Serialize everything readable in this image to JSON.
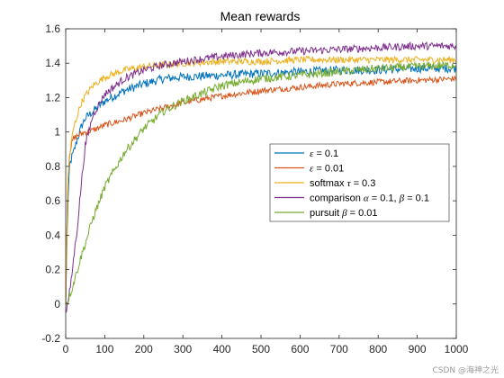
{
  "chart_data": {
    "type": "line",
    "title": "Mean rewards",
    "xlabel": "",
    "ylabel": "",
    "xlim": [
      0,
      1000
    ],
    "ylim": [
      -0.2,
      1.6
    ],
    "xticks": [
      "0",
      "100",
      "200",
      "300",
      "400",
      "500",
      "600",
      "700",
      "800",
      "900",
      "1000"
    ],
    "yticks": [
      "-0.2",
      "0",
      "0.2",
      "0.4",
      "0.6",
      "0.8",
      "1",
      "1.2",
      "1.4",
      "1.6"
    ],
    "grid": false,
    "legend_position": "center-right",
    "x": [
      0,
      5,
      10,
      15,
      20,
      30,
      40,
      50,
      70,
      100,
      150,
      200,
      250,
      300,
      400,
      500,
      600,
      700,
      800,
      900,
      1000
    ],
    "series": [
      {
        "name_parts": [
          {
            "text": "ε",
            "italic": true
          },
          {
            "text": " = 0.1",
            "italic": false
          }
        ],
        "color": "#0072BD",
        "values": [
          0.0,
          0.55,
          0.8,
          0.85,
          0.88,
          0.96,
          1.03,
          1.08,
          1.12,
          1.18,
          1.24,
          1.28,
          1.31,
          1.32,
          1.33,
          1.34,
          1.35,
          1.36,
          1.36,
          1.37,
          1.37
        ]
      },
      {
        "name_parts": [
          {
            "text": "ε",
            "italic": true
          },
          {
            "text": " = 0.01",
            "italic": false
          }
        ],
        "color": "#D95319",
        "values": [
          0.0,
          0.7,
          0.88,
          0.93,
          0.96,
          0.98,
          0.99,
          1.0,
          1.01,
          1.04,
          1.07,
          1.11,
          1.14,
          1.17,
          1.21,
          1.24,
          1.26,
          1.28,
          1.29,
          1.3,
          1.31
        ]
      },
      {
        "name_parts": [
          {
            "text": "softmax ",
            "italic": false
          },
          {
            "text": "τ",
            "italic": true
          },
          {
            "text": " = 0.3",
            "italic": false
          }
        ],
        "color": "#EDB120",
        "values": [
          0.0,
          0.7,
          0.85,
          0.95,
          1.02,
          1.1,
          1.17,
          1.21,
          1.27,
          1.32,
          1.36,
          1.38,
          1.39,
          1.4,
          1.41,
          1.41,
          1.42,
          1.42,
          1.42,
          1.42,
          1.42
        ]
      },
      {
        "name_parts": [
          {
            "text": "comparison ",
            "italic": false
          },
          {
            "text": "α",
            "italic": true
          },
          {
            "text": " = 0.1, ",
            "italic": false
          },
          {
            "text": "β",
            "italic": true
          },
          {
            "text": " = 0.1",
            "italic": false
          }
        ],
        "color": "#7E2F8E",
        "values": [
          -0.05,
          0.0,
          0.07,
          0.15,
          0.26,
          0.45,
          0.7,
          0.92,
          1.1,
          1.22,
          1.31,
          1.36,
          1.39,
          1.41,
          1.44,
          1.46,
          1.47,
          1.48,
          1.49,
          1.5,
          1.5
        ]
      },
      {
        "name_parts": [
          {
            "text": "pursuit ",
            "italic": false
          },
          {
            "text": "β",
            "italic": true
          },
          {
            "text": " = 0.01",
            "italic": false
          }
        ],
        "color": "#77AC30",
        "values": [
          0.0,
          0.02,
          0.05,
          0.08,
          0.12,
          0.2,
          0.28,
          0.35,
          0.5,
          0.68,
          0.88,
          1.02,
          1.12,
          1.18,
          1.27,
          1.31,
          1.33,
          1.35,
          1.37,
          1.38,
          1.39
        ]
      }
    ]
  },
  "watermark": "CSDN @海神之光"
}
